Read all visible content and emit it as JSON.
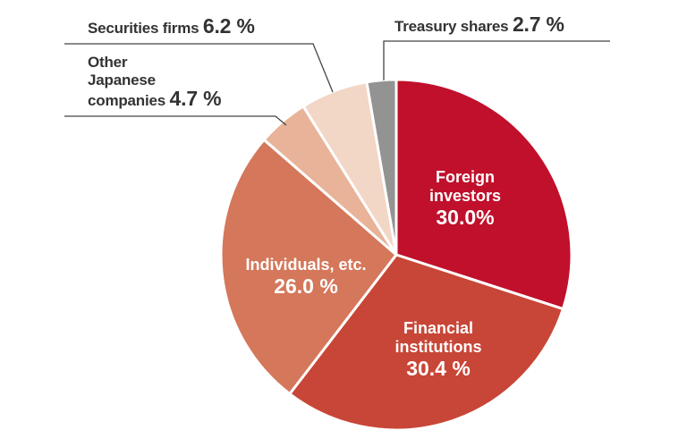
{
  "chart_data": {
    "type": "pie",
    "title": "",
    "categories": [
      "Foreign investors",
      "Financial institutions",
      "Individuals, etc.",
      "Other Japanese companies",
      "Securities firms",
      "Treasury shares"
    ],
    "values": [
      30.0,
      30.4,
      26.0,
      4.7,
      6.2,
      2.7
    ],
    "unit": "%",
    "colors": [
      "#c0102c",
      "#c84637",
      "#d5775a",
      "#e8b398",
      "#f2d6c6",
      "#939393"
    ],
    "start_angle_deg": 0,
    "direction": "clockwise",
    "labels": [
      {
        "name": "Foreign investors",
        "lines": [
          "Foreign",
          "investors"
        ],
        "value_text": "30.0%",
        "position": "inside"
      },
      {
        "name": "Financial institutions",
        "lines": [
          "Financial",
          "institutions"
        ],
        "value_text": "30.4 %",
        "position": "inside"
      },
      {
        "name": "Individuals, etc.",
        "lines": [
          "Individuals, etc."
        ],
        "value_text": "26.0 %",
        "position": "inside"
      },
      {
        "name": "Other Japanese companies",
        "lines": [
          "Other",
          "Japanese",
          "companies"
        ],
        "value_text": "4.7 %",
        "position": "outside"
      },
      {
        "name": "Securities firms",
        "lines": [
          "Securities firms"
        ],
        "value_text": "6.2 %",
        "position": "outside"
      },
      {
        "name": "Treasury shares",
        "lines": [
          "Treasury shares"
        ],
        "value_text": "2.7 %",
        "position": "outside"
      }
    ],
    "legend": null
  },
  "labels": {
    "foreign": {
      "l1": "Foreign",
      "l2": "investors",
      "pct": "30.0%"
    },
    "financial": {
      "l1": "Financial",
      "l2": "institutions",
      "pct": "30.4 %"
    },
    "individuals": {
      "l1": "Individuals, etc.",
      "pct": "26.0 %"
    },
    "other": {
      "l1": "Other",
      "l2": "Japanese",
      "l3": "companies",
      "pct": "4.7 %"
    },
    "securities": {
      "l1": "Securities firms",
      "pct": "6.2 %"
    },
    "treasury": {
      "l1": "Treasury shares",
      "pct": "2.7 %"
    }
  }
}
